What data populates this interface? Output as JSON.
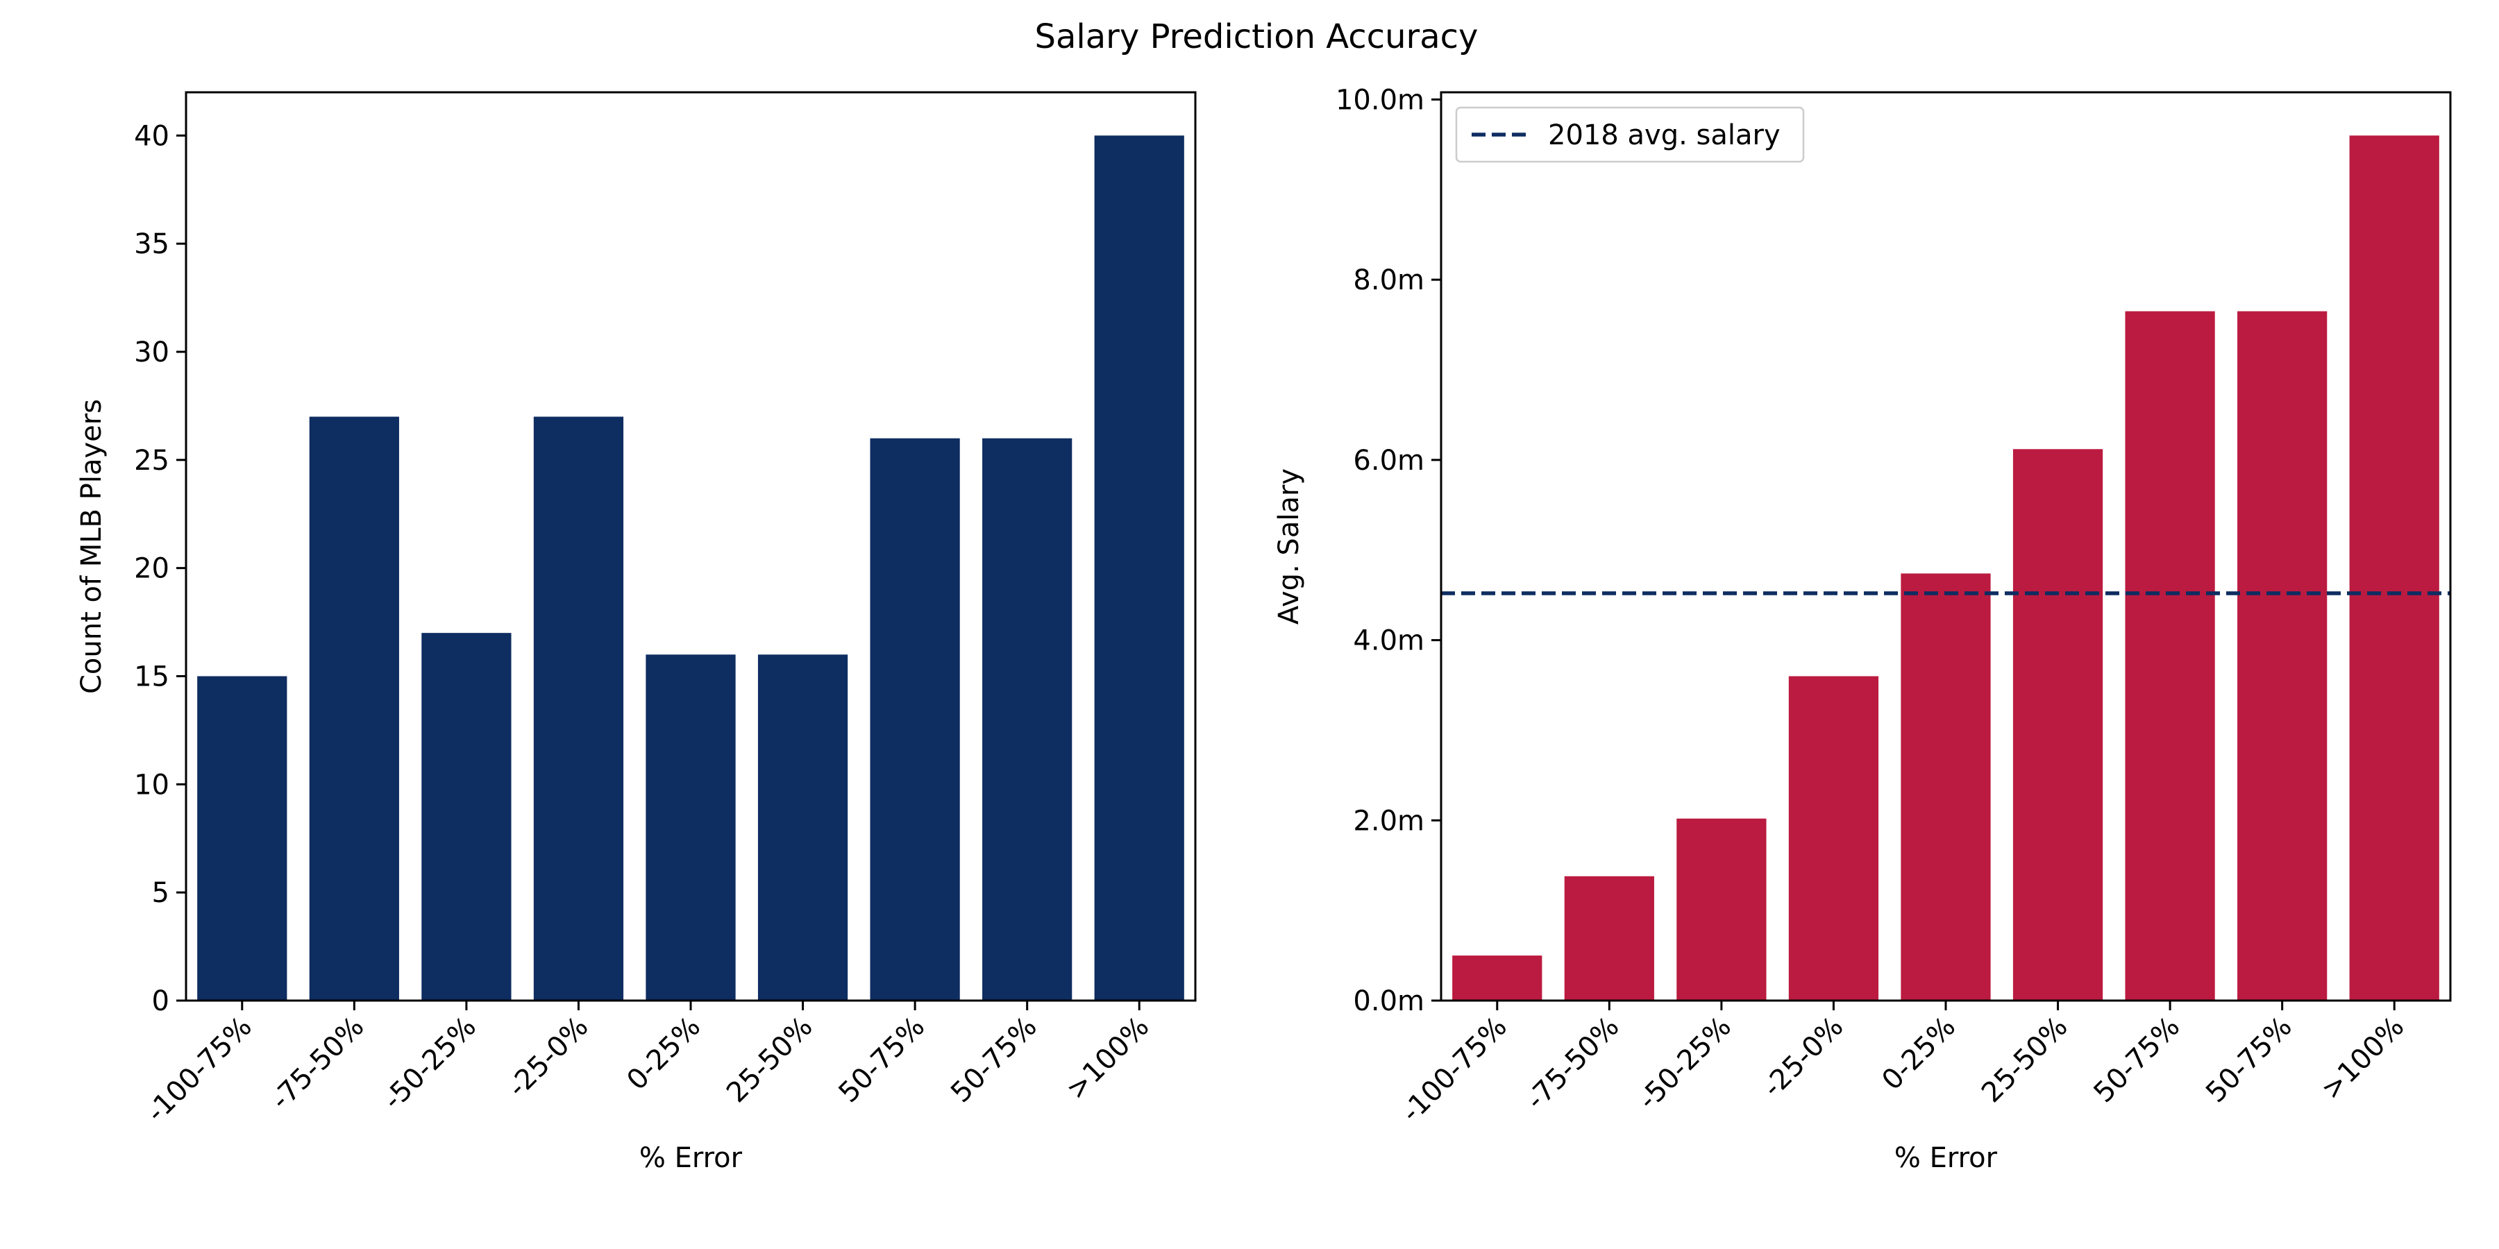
{
  "title": "Salary Prediction Accuracy",
  "colors": {
    "count_bars": "#0e2d61",
    "salary_bars": "#bb1b40",
    "avg_line": "#0e2d61"
  },
  "chart_data": [
    {
      "type": "bar",
      "categories": [
        "-100-75%",
        "-75-50%",
        "-50-25%",
        "-25-0%",
        "0-25%",
        "25-50%",
        "50-75%",
        "50-75%",
        ">100%"
      ],
      "values": [
        15,
        27,
        17,
        27,
        16,
        16,
        26,
        26,
        40
      ],
      "xlabel": "% Error",
      "ylabel": "Count of MLB Players",
      "ylim": [
        0,
        42
      ],
      "yticks": [
        0,
        5,
        10,
        15,
        20,
        25,
        30,
        35,
        40
      ],
      "ytick_labels": [
        "0",
        "5",
        "10",
        "15",
        "20",
        "25",
        "30",
        "35",
        "40"
      ],
      "grid": false
    },
    {
      "type": "bar",
      "categories": [
        "-100-75%",
        "-75-50%",
        "-50-25%",
        "-25-0%",
        "0-25%",
        "25-50%",
        "50-75%",
        "50-75%",
        ">100%"
      ],
      "values": [
        0.5,
        1.38,
        2.02,
        3.6,
        4.74,
        6.12,
        7.65,
        7.65,
        9.6
      ],
      "value_unit": "million",
      "xlabel": "% Error",
      "ylabel": "Avg. Salary",
      "ylim": [
        0,
        10.08
      ],
      "yticks": [
        0,
        2,
        4,
        6,
        8,
        10
      ],
      "ytick_labels": [
        "0.0m",
        "2.0m",
        "4.0m",
        "6.0m",
        "8.0m",
        "10.0m"
      ],
      "reference_line": {
        "label": "2018 avg. salary",
        "value": 4.52,
        "style": "dashed"
      },
      "legend": {
        "placement": "top-left",
        "entries": [
          "2018 avg. salary"
        ]
      },
      "grid": false
    }
  ]
}
